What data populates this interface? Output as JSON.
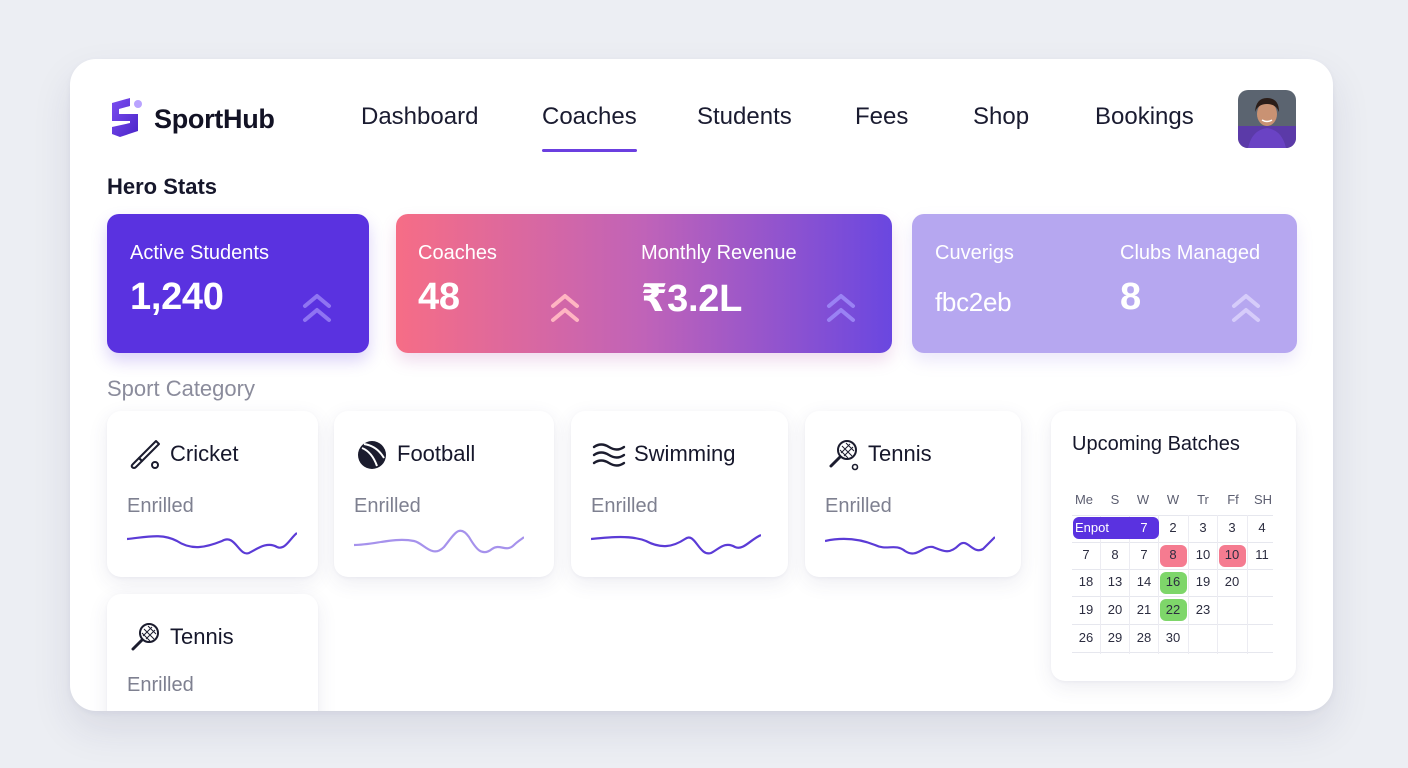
{
  "app": {
    "name": "SportHub"
  },
  "nav": {
    "items": [
      "Dashboard",
      "Coaches",
      "Students",
      "Fees",
      "Shop",
      "Bookings"
    ],
    "active": "Coaches"
  },
  "hero": {
    "title": "Hero Stats",
    "cards": [
      {
        "label": "Active Students",
        "value": "1,240"
      },
      {
        "label": "Coaches",
        "value": "48"
      },
      {
        "label": "Monthly Revenue",
        "value": "₹3.2L"
      },
      {
        "label": "Cuverigs",
        "value": "fbc2eb"
      },
      {
        "label": "Clubs Managed",
        "value": "8"
      }
    ]
  },
  "categories": {
    "title": "Sport Category",
    "items": [
      {
        "name": "Cricket",
        "enrolled_label": "Enrilled",
        "icon": "cricket-bat-icon"
      },
      {
        "name": "Football",
        "enrolled_label": "Enrilled",
        "icon": "football-icon"
      },
      {
        "name": "Swimming",
        "enrolled_label": "Enrilled",
        "icon": "waves-icon"
      },
      {
        "name": "Tennis",
        "enrolled_label": "Enrilled",
        "icon": "tennis-racket-icon"
      },
      {
        "name": "Tennis",
        "enrolled_label": "Enrilled",
        "icon": "tennis-racket-icon"
      }
    ]
  },
  "batches": {
    "title": "Upcoming Batches",
    "weekdays": [
      "Me",
      "S",
      "W",
      "W",
      "Tr",
      "Ff",
      "SH"
    ],
    "event_label": "Enpot",
    "rows": [
      [
        "",
        "7",
        "2",
        "3",
        "3",
        "4"
      ],
      [
        "7",
        "8",
        "7",
        "8",
        "10",
        "10",
        "11"
      ],
      [
        "18",
        "13",
        "14",
        "16",
        "19",
        "20",
        ""
      ],
      [
        "19",
        "20",
        "21",
        "22",
        "23",
        "",
        ""
      ],
      [
        "26",
        "29",
        "28",
        "30",
        "",
        "",
        ""
      ]
    ]
  },
  "colors": {
    "accent": "#6b3fe0",
    "card_purple": "#5a32e0",
    "card_lavender": "#b6a7f0",
    "highlight_red": "#f57b90",
    "highlight_green": "#7ed66a"
  }
}
